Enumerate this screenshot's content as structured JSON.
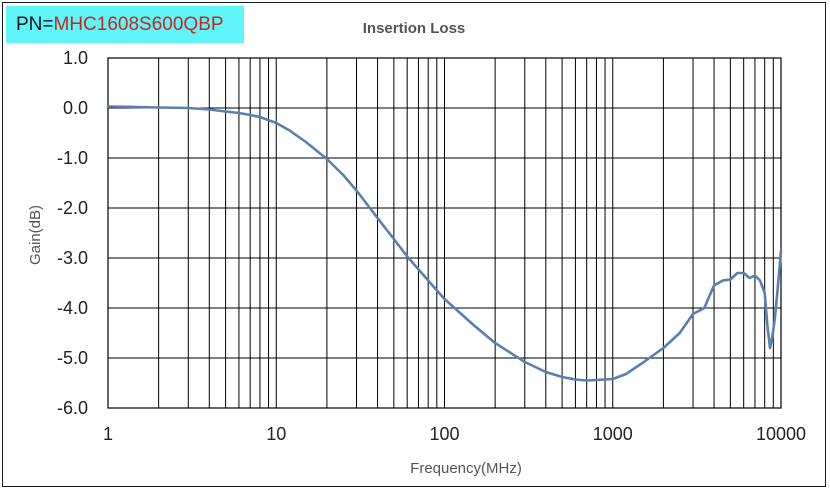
{
  "label": {
    "prefix": "PN=",
    "part_number": "MHC1608S600QBP",
    "background": "#5ff5fb",
    "part_color": "#c8261e"
  },
  "chart_data": {
    "type": "line",
    "title": "Insertion Loss",
    "xlabel": "Frequency(MHz)",
    "ylabel": "Gain(dB)",
    "xscale": "log",
    "xlim": [
      1,
      10000
    ],
    "ylim": [
      -6.0,
      1.0
    ],
    "x_ticks": [
      1,
      10,
      100,
      1000,
      10000
    ],
    "x_tick_labels": [
      "1",
      "10",
      "100",
      "1000",
      "10000"
    ],
    "y_ticks": [
      1.0,
      0.0,
      -1.0,
      -2.0,
      -3.0,
      -4.0,
      -5.0,
      -6.0
    ],
    "y_tick_labels": [
      "1.0",
      "0.0",
      "-1.0",
      "-2.0",
      "-3.0",
      "-4.0",
      "-5.0",
      "-6.0"
    ],
    "grid": true,
    "line_color": "#5b7fb0",
    "series": [
      {
        "x": [
          1,
          1.5,
          2,
          3,
          4,
          5,
          6,
          7,
          8,
          10,
          12,
          15,
          20,
          25,
          30,
          40,
          50,
          60,
          80,
          100,
          150,
          200,
          300,
          400,
          500,
          600,
          700,
          800,
          1000,
          1200,
          1500,
          2000,
          2500,
          3000,
          3500,
          4000,
          4500,
          5000,
          5500,
          6000,
          6500,
          7000,
          7500,
          8000,
          8300,
          8600,
          8900,
          9200,
          9500,
          9800,
          10000
        ],
        "y": [
          0.03,
          0.02,
          0.01,
          0.0,
          -0.03,
          -0.07,
          -0.1,
          -0.14,
          -0.18,
          -0.3,
          -0.45,
          -0.68,
          -1.02,
          -1.34,
          -1.65,
          -2.2,
          -2.62,
          -2.97,
          -3.45,
          -3.82,
          -4.35,
          -4.7,
          -5.08,
          -5.28,
          -5.38,
          -5.43,
          -5.45,
          -5.44,
          -5.42,
          -5.32,
          -5.1,
          -4.8,
          -4.5,
          -4.12,
          -4.0,
          -3.55,
          -3.45,
          -3.43,
          -3.3,
          -3.3,
          -3.4,
          -3.35,
          -3.45,
          -3.7,
          -4.35,
          -4.8,
          -4.55,
          -4.2,
          -3.7,
          -3.2,
          -2.85
        ]
      }
    ]
  }
}
